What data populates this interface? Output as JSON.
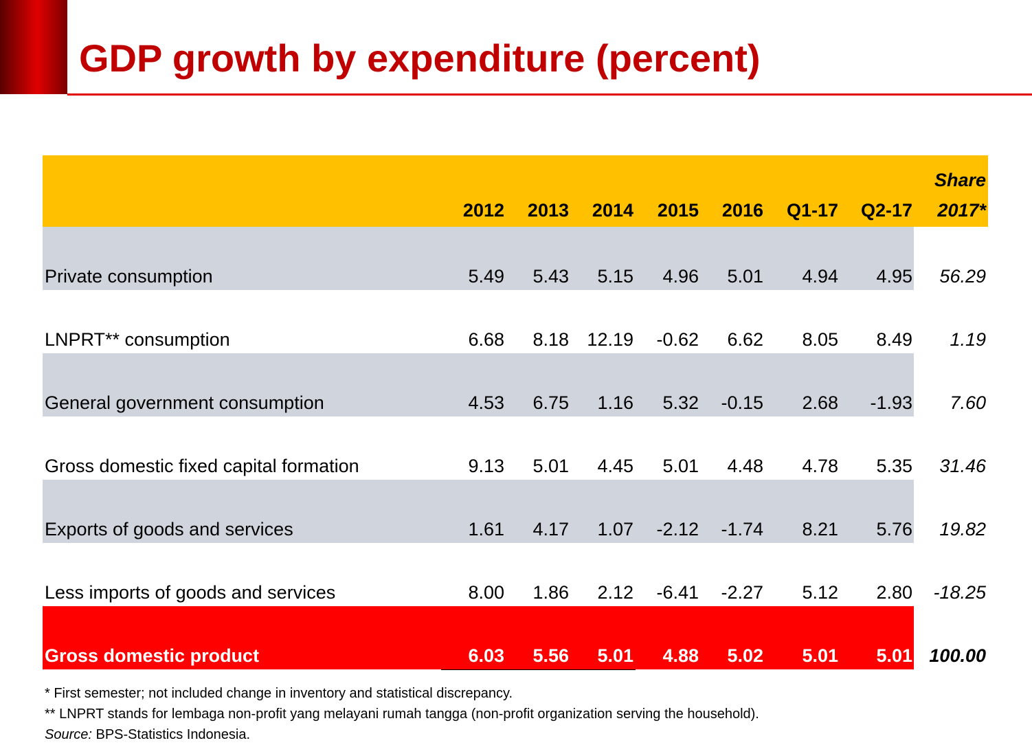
{
  "header": {
    "title": "GDP growth by expenditure (percent)"
  },
  "table": {
    "columns": [
      "2012",
      "2013",
      "2014",
      "2015",
      "2016",
      "Q1-17",
      "Q2-17"
    ],
    "share_column": [
      "Share",
      "2017*"
    ],
    "rows": [
      [
        "Private consumption",
        "5.49",
        "5.43",
        "5.15",
        "4.96",
        "5.01",
        "4.94",
        "4.95",
        "56.29"
      ],
      [
        "LNPRT** consumption",
        "6.68",
        "8.18",
        "12.19",
        "-0.62",
        "6.62",
        "8.05",
        "8.49",
        "1.19"
      ],
      [
        "General government consumption",
        "4.53",
        "6.75",
        "1.16",
        "5.32",
        "-0.15",
        "2.68",
        "-1.93",
        "7.60"
      ],
      [
        "Gross domestic fixed capital formation",
        "9.13",
        "5.01",
        "4.45",
        "5.01",
        "4.48",
        "4.78",
        "5.35",
        "31.46"
      ],
      [
        "Exports of goods and services",
        "1.61",
        "4.17",
        "1.07",
        "-2.12",
        "-1.74",
        "8.21",
        "5.76",
        "19.82"
      ],
      [
        "Less imports of goods and services",
        "8.00",
        "1.86",
        "2.12",
        "-6.41",
        "-2.27",
        "5.12",
        "2.80",
        "-18.25"
      ]
    ],
    "total_row": [
      "Gross domestic product",
      "6.03",
      "5.56",
      "5.01",
      "4.88",
      "5.02",
      "5.01",
      "5.01",
      "100.00"
    ]
  },
  "footnotes": {
    "notes": [
      "* First semester; not included change in inventory and statistical discrepancy.",
      "** LNPRT stands for lembaga non-profit yang melayani rumah tangga (non-profit organization serving the household)."
    ],
    "source": {
      "label": "Source:",
      "text": "BPS-Statistics Indonesia."
    }
  }
}
